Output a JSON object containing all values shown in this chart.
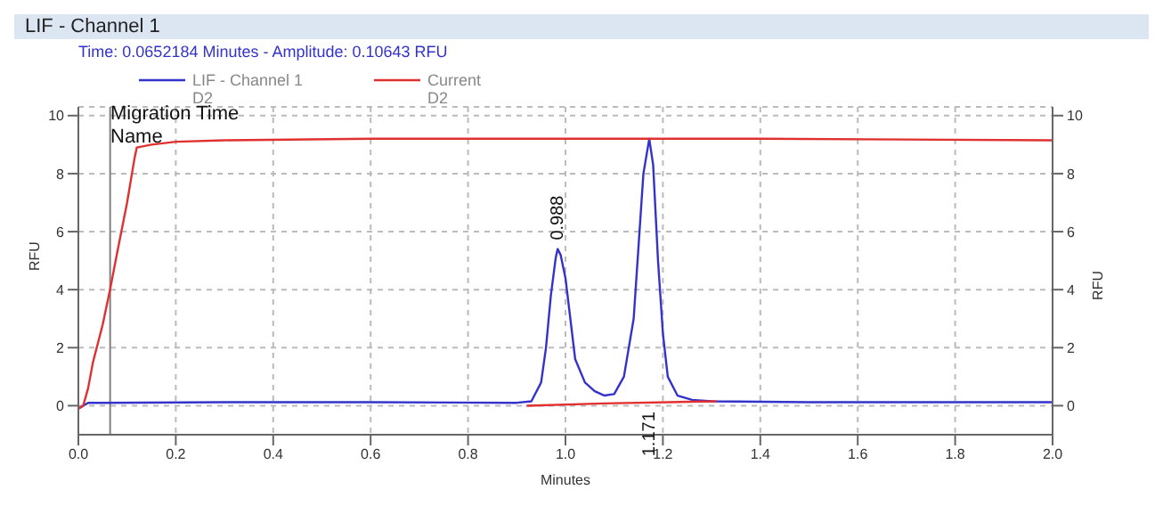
{
  "chart_data": {
    "type": "line",
    "title": "LIF - Channel 1",
    "subtitle": "Time:  0.0652184 Minutes - Amplitude:  0.10643 RFU",
    "xlabel": "Minutes",
    "ylabel": "RFU",
    "y2label": "RFU",
    "xlim": [
      0,
      2
    ],
    "xticks": [
      {
        "value": 0,
        "label": "0.0"
      },
      {
        "value": 0.2,
        "label": "0.2"
      },
      {
        "value": 0.4,
        "label": "0.4"
      },
      {
        "value": 0.6,
        "label": "0.6"
      },
      {
        "value": 0.8,
        "label": "0.8"
      },
      {
        "value": 1,
        "label": "1.0"
      },
      {
        "value": 1.2,
        "label": "1.2"
      },
      {
        "value": 1.4,
        "label": "1.4"
      },
      {
        "value": 1.6,
        "label": "1.6"
      },
      {
        "value": 1.8,
        "label": "1.8"
      },
      {
        "value": 2,
        "label": "2.0"
      }
    ],
    "ylim": [
      -1,
      10.3
    ],
    "yticks": [
      0,
      2,
      4,
      6,
      8,
      10
    ],
    "y2lim": [
      -1,
      10.3
    ],
    "y2ticks": [
      0,
      2,
      4,
      6,
      8,
      10
    ],
    "grid": true,
    "legend": "top left",
    "marker": "none",
    "line_style": "solid",
    "series": [
      {
        "name": "LIF - Channel 1\nD2",
        "color": "#3333cc",
        "x": [
          0,
          0.02,
          0.05,
          0.3,
          0.6,
          0.9,
          0.93,
          0.95,
          0.96,
          0.97,
          0.98,
          0.984,
          0.99,
          1.0,
          1.01,
          1.02,
          1.04,
          1.06,
          1.08,
          1.1,
          1.12,
          1.14,
          1.15,
          1.16,
          1.172,
          1.18,
          1.19,
          1.2,
          1.21,
          1.23,
          1.26,
          1.3,
          1.5,
          2.0
        ],
        "values": [
          -0.1,
          0.1,
          0.1,
          0.12,
          0.12,
          0.1,
          0.15,
          0.8,
          2,
          3.8,
          5.1,
          5.4,
          5.2,
          4.4,
          3,
          1.6,
          0.8,
          0.5,
          0.35,
          0.4,
          1,
          3,
          5.5,
          8,
          9.2,
          8.3,
          5,
          2.5,
          1,
          0.35,
          0.2,
          0.15,
          0.12,
          0.12
        ]
      },
      {
        "name": "Current\nD2",
        "color": "#e03030",
        "x": [
          0,
          0.01,
          0.02,
          0.03,
          0.05,
          0.065,
          0.08,
          0.1,
          0.115,
          0.12,
          0.15,
          0.2,
          0.3,
          0.6,
          1.4,
          2.0
        ],
        "values": [
          -0.1,
          0,
          0.6,
          1.5,
          2.8,
          4,
          5.3,
          7,
          8.5,
          8.9,
          9.0,
          9.1,
          9.15,
          9.2,
          9.2,
          9.15
        ]
      },
      {
        "color": "#e03030",
        "x": [
          0.92,
          1.08,
          1.31
        ],
        "values": [
          0.0,
          0.08,
          0.15
        ]
      }
    ],
    "ref_lines": [
      {
        "axis": "x",
        "value": 0.0652184,
        "color": "#808080"
      }
    ],
    "annotations": [
      "Migration Time\nName",
      {
        "text": "0.988",
        "x": 0.984,
        "y": 5.4
      },
      {
        "text": "1.171",
        "x": 1.172,
        "y": 0.1
      }
    ]
  }
}
